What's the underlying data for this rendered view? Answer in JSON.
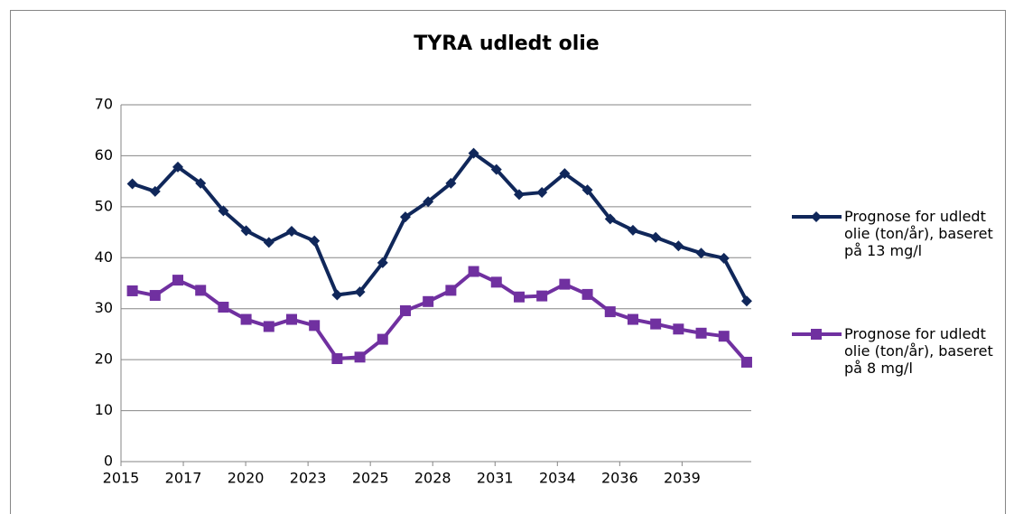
{
  "chart_data": {
    "type": "line",
    "title": "TYRA udledt olie",
    "x": [
      2015,
      2016,
      2017,
      2018,
      2019,
      2020,
      2021,
      2022,
      2023,
      2024,
      2025,
      2026,
      2027,
      2028,
      2029,
      2030,
      2031,
      2032,
      2033,
      2034,
      2035,
      2036,
      2037,
      2038,
      2039,
      2040,
      2041,
      2042
    ],
    "series": [
      {
        "name": "Prognose for udledt olie (ton/år), baseret på 13 mg/l",
        "color": "#10275a",
        "marker": "diamond",
        "values": [
          54.5,
          53,
          57.8,
          54.6,
          49.2,
          45.3,
          43,
          45.2,
          43.3,
          32.7,
          33.3,
          39,
          48,
          51,
          54.6,
          60.5,
          57.3,
          52.4,
          52.8,
          56.5,
          53.3,
          47.6,
          45.4,
          44,
          42.3,
          40.9,
          39.9,
          31.5
        ]
      },
      {
        "name": "Prognose for udledt olie (ton/år), baseret på 8 mg/l",
        "color": "#7030a0",
        "marker": "square",
        "values": [
          33.5,
          32.6,
          35.6,
          33.6,
          30.3,
          27.9,
          26.5,
          27.9,
          26.7,
          20.2,
          20.5,
          24,
          29.6,
          31.4,
          33.6,
          37.3,
          35.2,
          32.3,
          32.5,
          34.8,
          32.8,
          29.4,
          27.9,
          27,
          26,
          25.2,
          24.6,
          19.5
        ]
      }
    ],
    "xlim": [
      2014.5,
      2042.2
    ],
    "xticks": [
      {
        "value": 2014.5,
        "label": "2015"
      },
      {
        "value": 2017.24,
        "label": "2017"
      },
      {
        "value": 2019.98,
        "label": "2020"
      },
      {
        "value": 2022.72,
        "label": "2023"
      },
      {
        "value": 2025.46,
        "label": "2025"
      },
      {
        "value": 2028.2,
        "label": "2028"
      },
      {
        "value": 2030.94,
        "label": "2031"
      },
      {
        "value": 2033.68,
        "label": "2034"
      },
      {
        "value": 2036.42,
        "label": "2036"
      },
      {
        "value": 2039.16,
        "label": "2039"
      }
    ],
    "ylim": [
      0,
      70
    ],
    "yticks": [
      0,
      10,
      20,
      30,
      40,
      50,
      60,
      70
    ],
    "grid": true,
    "legend": "right"
  }
}
